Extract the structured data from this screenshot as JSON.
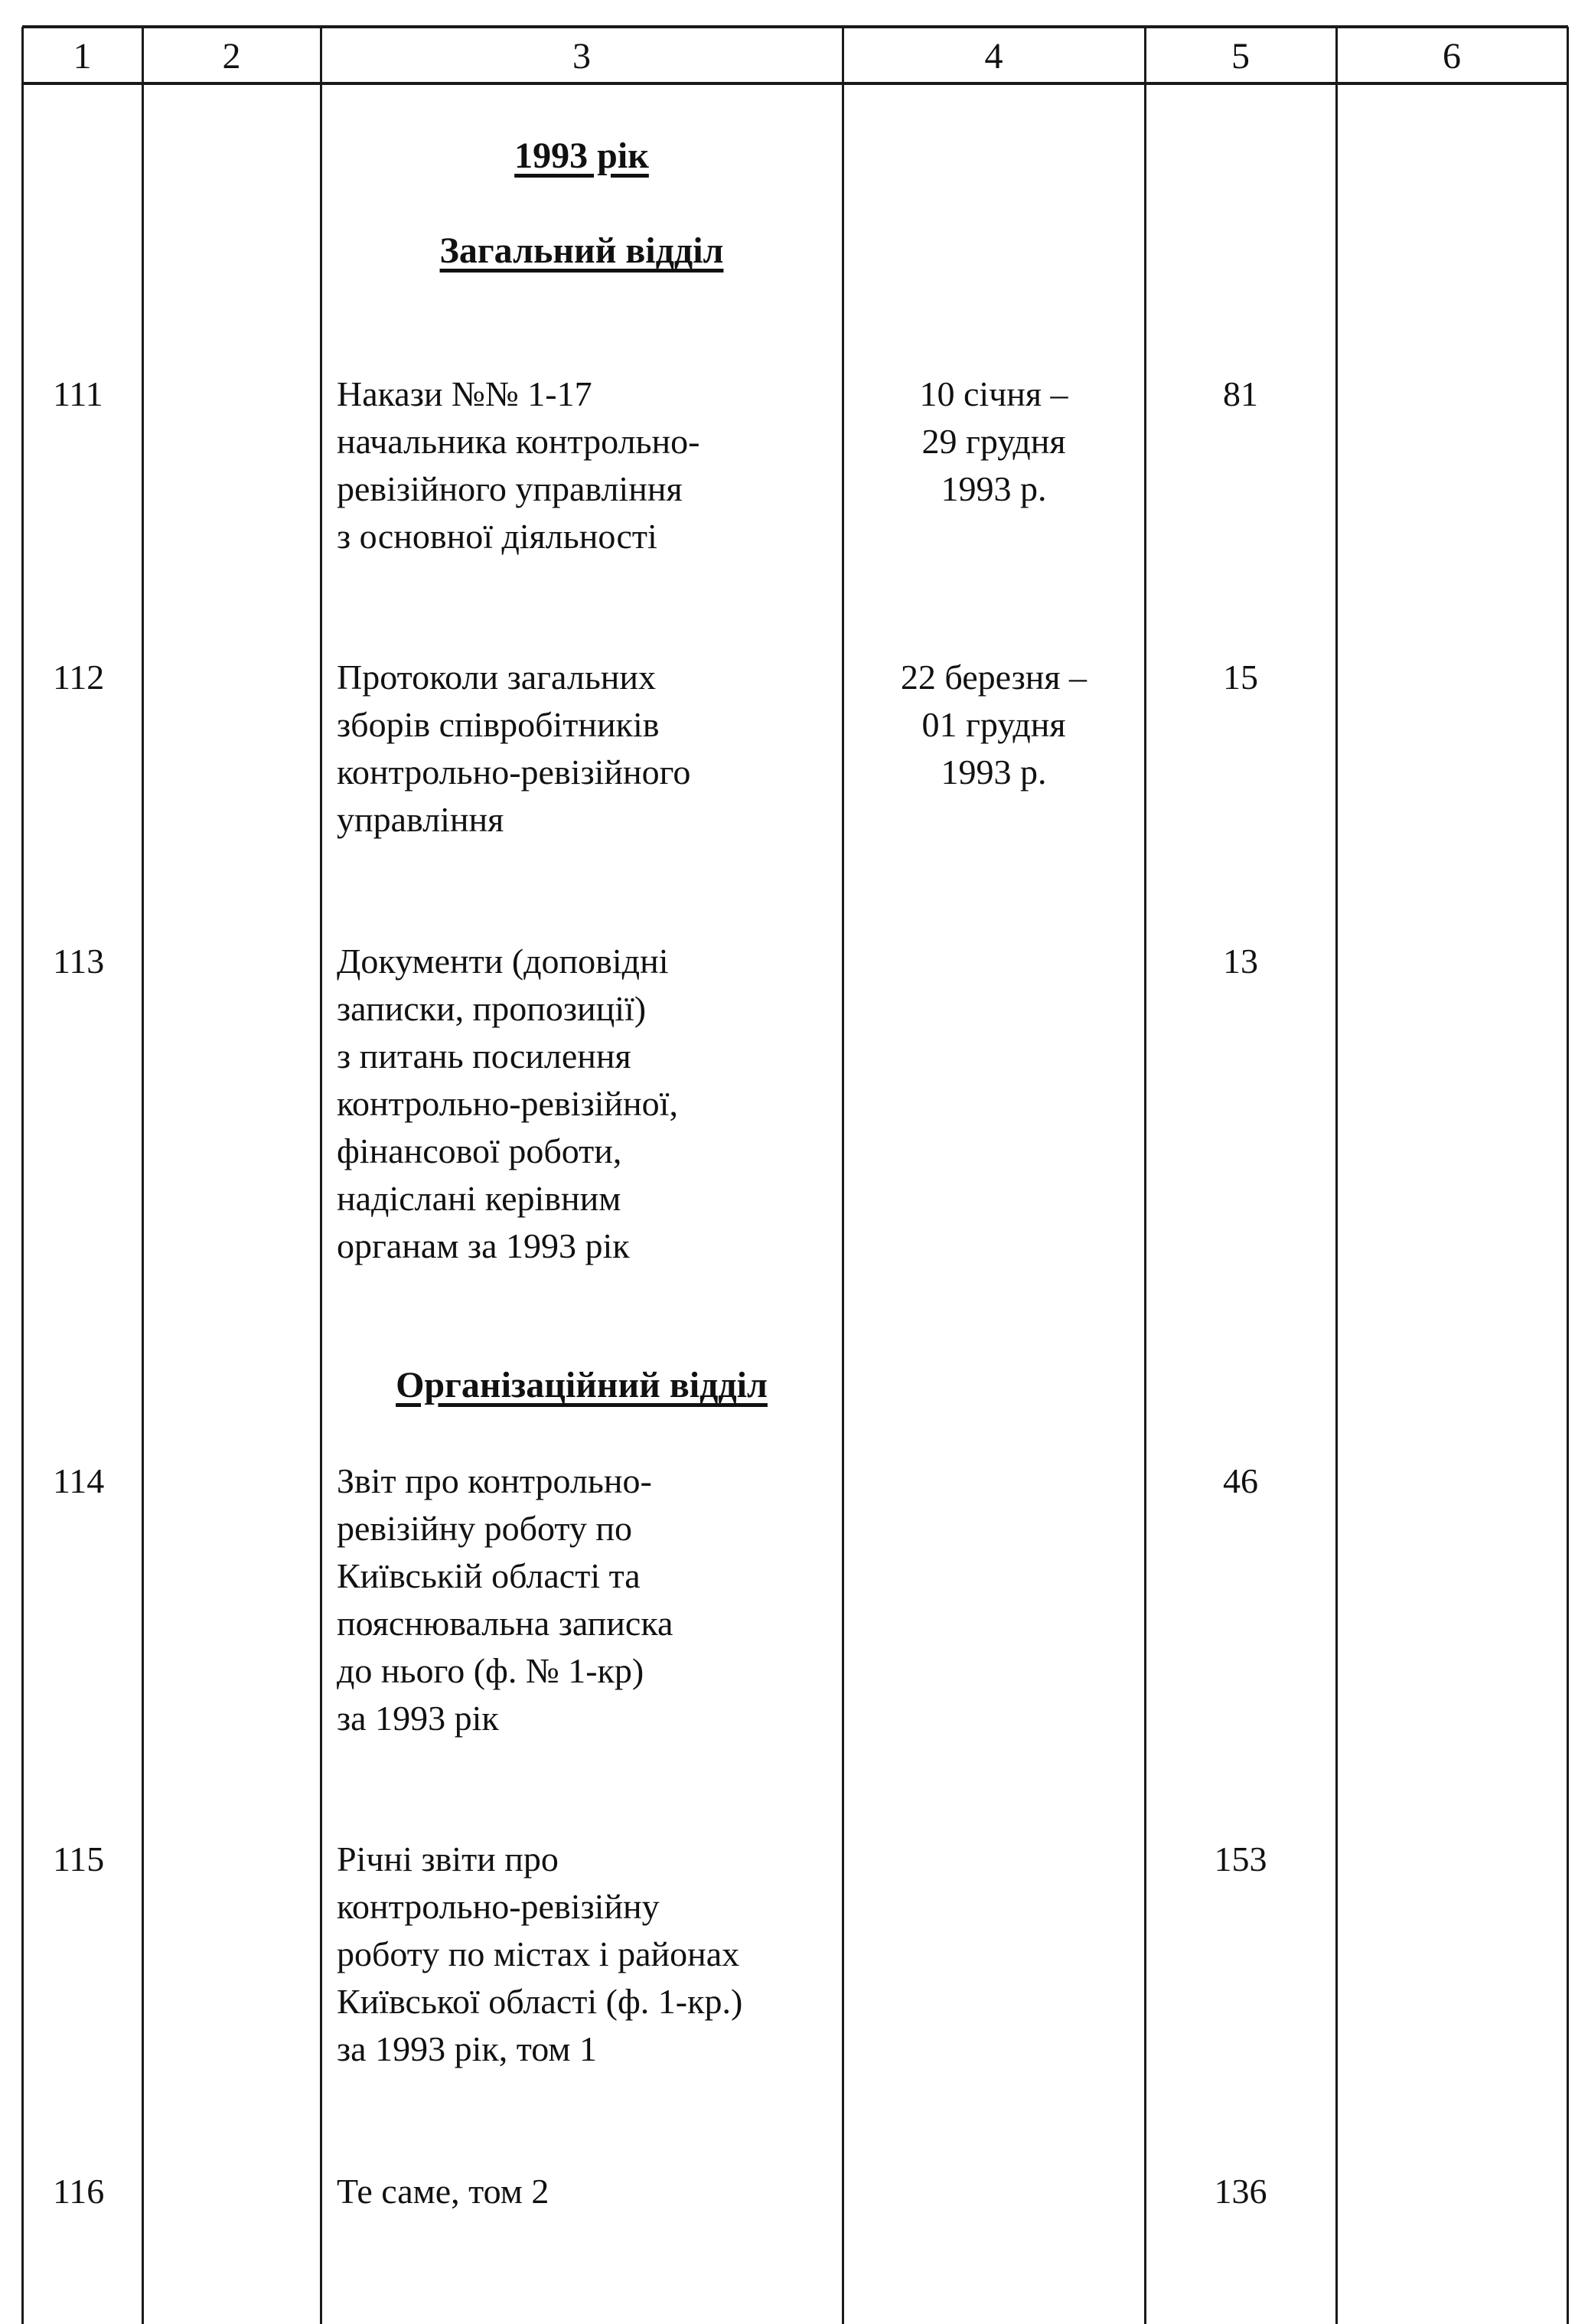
{
  "header": [
    "1",
    "2",
    "3",
    "4",
    "5",
    "6"
  ],
  "headings": {
    "year": "1993 рік",
    "general_department": "Загальний відділ",
    "organizational_department": "Організаційний відділ"
  },
  "rows": [
    {
      "num": "111",
      "title": "Накази №№ 1-17\nначальника контрольно-\nревізійного управління\nз основної діяльності",
      "dates": "10 січня –\n29 грудня\n1993 р.",
      "sheets": "81"
    },
    {
      "num": "112",
      "title": "Протоколи загальних\nзборів співробітників\nконтрольно-ревізійного\nуправління",
      "dates": "22 березня –\n01 грудня\n1993 р.",
      "sheets": "15"
    },
    {
      "num": "113",
      "title": "Документи (доповідні\nзаписки, пропозиції)\nз питань посилення\nконтрольно-ревізійної,\nфінансової роботи,\nнадіслані керівним\nорганам за 1993 рік",
      "dates": "",
      "sheets": "13"
    },
    {
      "num": "114",
      "title": "Звіт про контрольно-\nревізійну роботу по\nКиївській області та\nпояснювальна записка\nдо нього (ф. № 1-кр)\nза 1993 рік",
      "dates": "",
      "sheets": "46"
    },
    {
      "num": "115",
      "title": "Річні звіти про\nконтрольно-ревізійну\nроботу по містах і районах\nКиївської області (ф. 1-кр.)\nза 1993 рік, том 1",
      "dates": "",
      "sheets": "153"
    },
    {
      "num": "116",
      "title": "Те саме, том 2",
      "dates": "",
      "sheets": "136"
    }
  ]
}
